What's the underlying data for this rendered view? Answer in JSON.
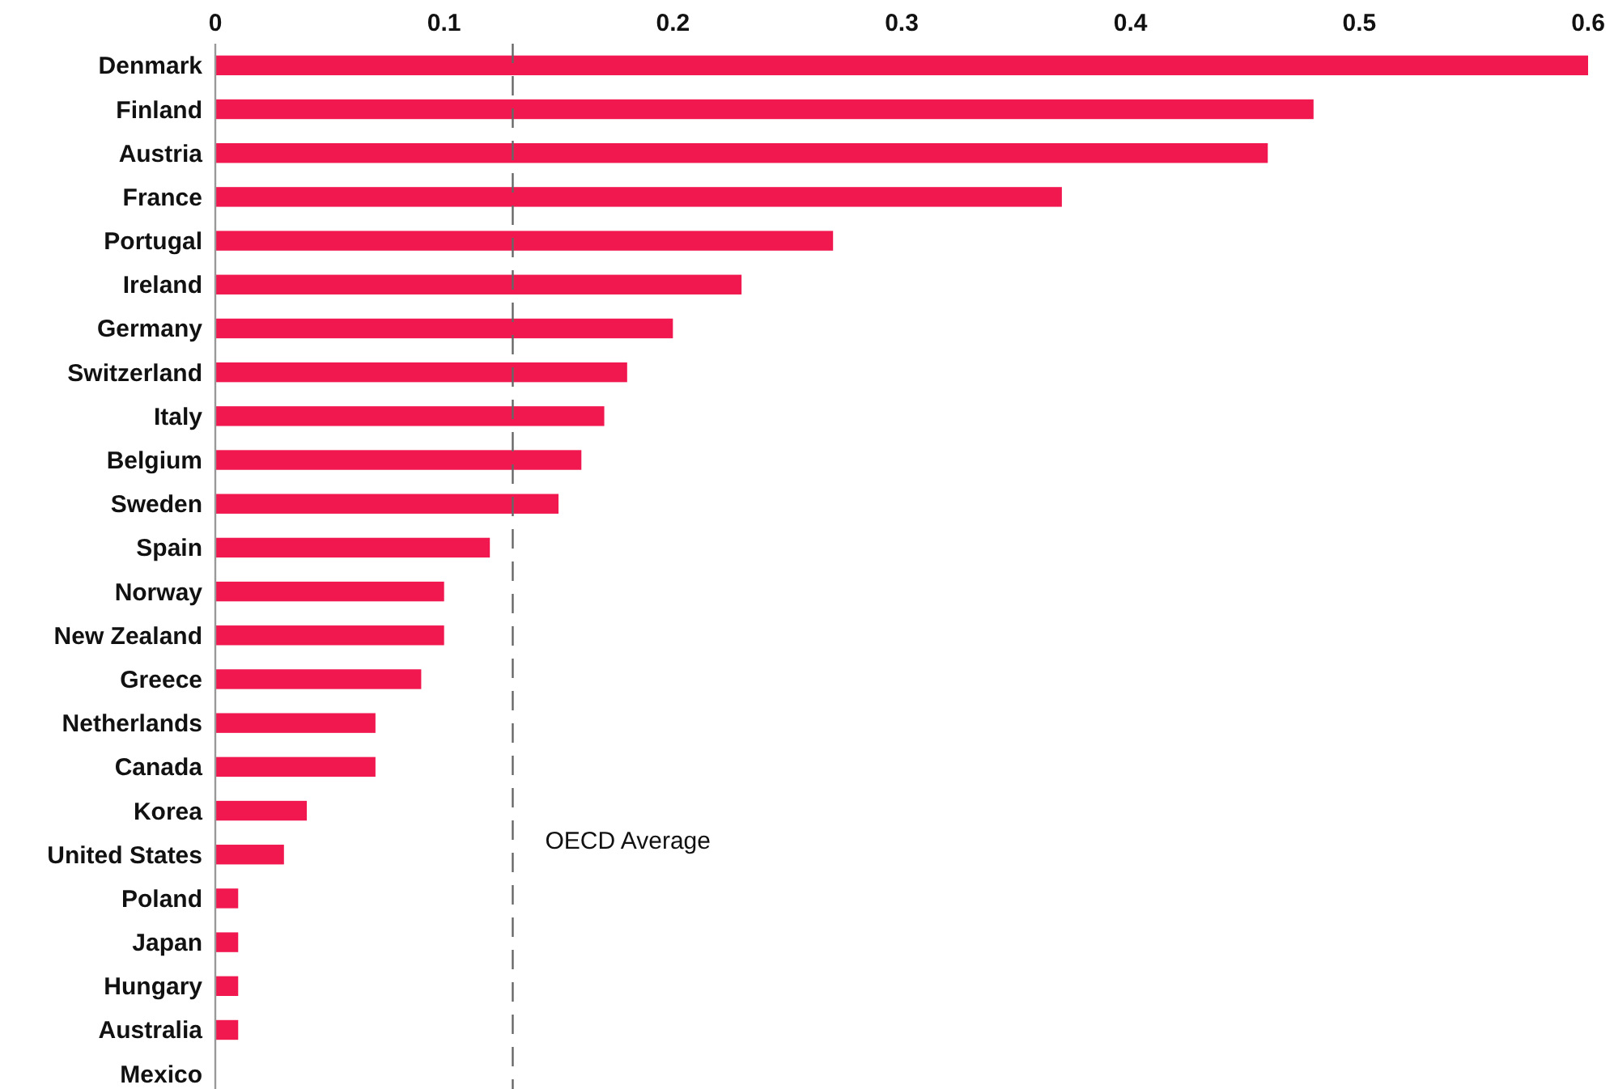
{
  "chart_data": {
    "type": "bar",
    "orientation": "horizontal",
    "categories": [
      "Denmark",
      "Finland",
      "Austria",
      "France",
      "Portugal",
      "Ireland",
      "Germany",
      "Switzerland",
      "Italy",
      "Belgium",
      "Sweden",
      "Spain",
      "Norway",
      "New Zealand",
      "Greece",
      "Netherlands",
      "Canada",
      "Korea",
      "United States",
      "Poland",
      "Japan",
      "Hungary",
      "Australia",
      "Mexico"
    ],
    "values": [
      0.6,
      0.48,
      0.46,
      0.37,
      0.27,
      0.23,
      0.2,
      0.18,
      0.17,
      0.16,
      0.15,
      0.12,
      0.1,
      0.1,
      0.09,
      0.07,
      0.07,
      0.04,
      0.03,
      0.01,
      0.01,
      0.01,
      0.01,
      0
    ],
    "color": "#f0184f",
    "xlim": [
      0,
      0.6
    ],
    "xticks": [
      0,
      0.1,
      0.2,
      0.3,
      0.4,
      0.5,
      0.6
    ],
    "grid": false,
    "ref_lines": [
      {
        "axis": "x",
        "value": 0.13,
        "label": "OECD Average",
        "color": "#666666",
        "line_style": "dashed"
      }
    ]
  }
}
